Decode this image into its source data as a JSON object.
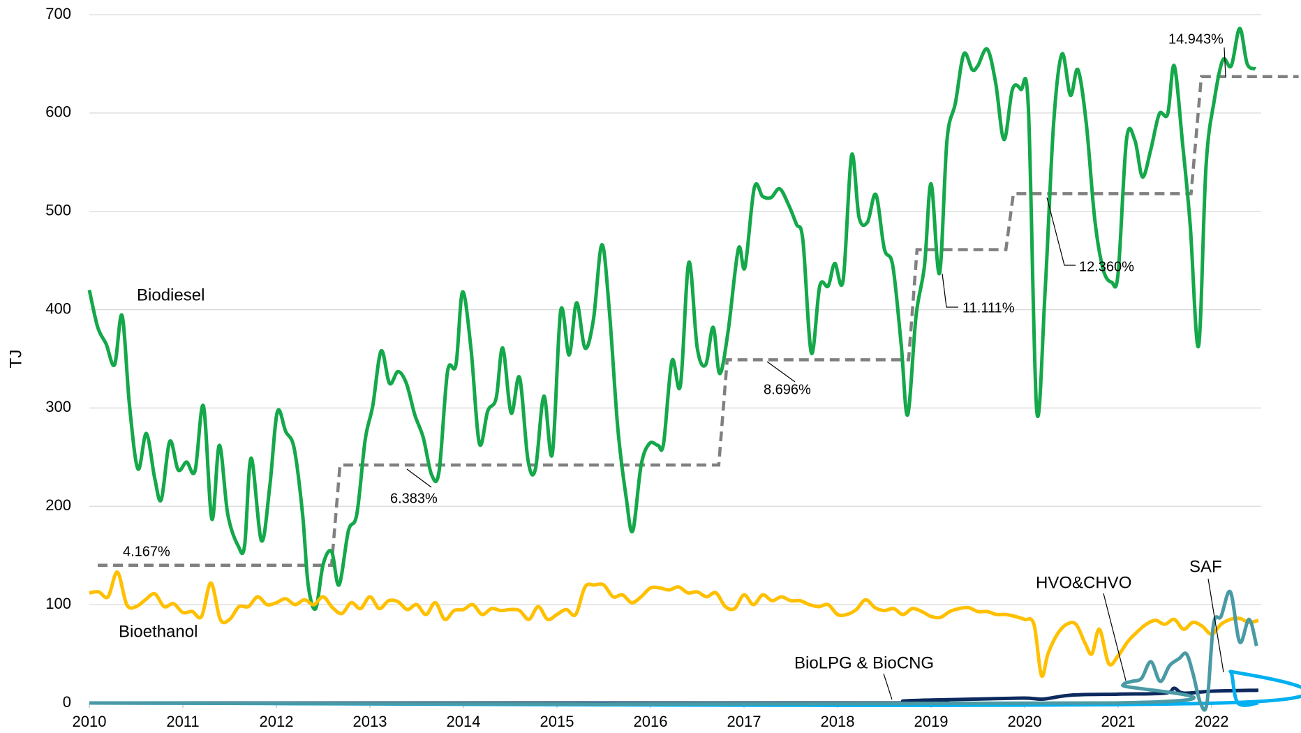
{
  "chart_data": {
    "type": "line",
    "y_label": "TJ",
    "xlim": [
      2010,
      2022.53
    ],
    "ylim": [
      0,
      700
    ],
    "xticks": [
      2010,
      2011,
      2012,
      2013,
      2014,
      2015,
      2016,
      2017,
      2018,
      2019,
      2020,
      2021,
      2022
    ],
    "yticks": [
      0,
      100,
      200,
      300,
      400,
      500,
      600,
      700
    ],
    "grid": true,
    "series": [
      {
        "name": "Biodiesel",
        "color": "#14a84a",
        "x": [
          2010.0,
          2010.09,
          2010.18,
          2010.27,
          2010.35,
          2010.43,
          2010.52,
          2010.61,
          2010.7,
          2010.77,
          2010.86,
          2010.95,
          2011.04,
          2011.13,
          2011.22,
          2011.31,
          2011.39,
          2011.48,
          2011.59,
          2011.66,
          2011.73,
          2011.84,
          2011.93,
          2012.01,
          2012.1,
          2012.19,
          2012.28,
          2012.34,
          2012.42,
          2012.5,
          2012.59,
          2012.67,
          2012.77,
          2012.86,
          2012.95,
          2013.03,
          2013.12,
          2013.21,
          2013.3,
          2013.39,
          2013.48,
          2013.57,
          2013.66,
          2013.74,
          2013.83,
          2013.92,
          2013.99,
          2014.08,
          2014.17,
          2014.26,
          2014.35,
          2014.42,
          2014.51,
          2014.6,
          2014.69,
          2014.77,
          2014.86,
          2014.95,
          2015.04,
          2015.13,
          2015.21,
          2015.3,
          2015.39,
          2015.48,
          2015.56,
          2015.65,
          2015.74,
          2015.81,
          2015.9,
          2015.99,
          2016.08,
          2016.14,
          2016.23,
          2016.32,
          2016.41,
          2016.5,
          2016.59,
          2016.67,
          2016.74,
          2016.83,
          2016.94,
          2017.01,
          2017.11,
          2017.2,
          2017.29,
          2017.38,
          2017.47,
          2017.56,
          2017.63,
          2017.72,
          2017.81,
          2017.9,
          2017.97,
          2018.06,
          2018.15,
          2018.23,
          2018.32,
          2018.41,
          2018.5,
          2018.59,
          2018.68,
          2018.75,
          2018.84,
          2018.93,
          2019.0,
          2019.09,
          2019.17,
          2019.26,
          2019.35,
          2019.44,
          2019.5,
          2019.6,
          2019.69,
          2019.78,
          2019.87,
          2019.96,
          2020.04,
          2020.13,
          2020.22,
          2020.31,
          2020.4,
          2020.49,
          2020.57,
          2020.66,
          2020.75,
          2020.84,
          2020.93,
          2021.0,
          2021.09,
          2021.18,
          2021.26,
          2021.35,
          2021.44,
          2021.53,
          2021.6,
          2021.69,
          2021.77,
          2021.86,
          2021.94,
          2022.03,
          2022.12,
          2022.21,
          2022.3,
          2022.38,
          2022.47
        ],
        "values": [
          420,
          382,
          365,
          344,
          394,
          302,
          238,
          274,
          228,
          207,
          266,
          237,
          245,
          236,
          302,
          187,
          262,
          192,
          160,
          160,
          249,
          165,
          221,
          296,
          276,
          259,
          192,
          120,
          96,
          141,
          154,
          120,
          175,
          192,
          268,
          302,
          358,
          325,
          337,
          325,
          293,
          270,
          232,
          236,
          337,
          344,
          418,
          361,
          264,
          297,
          310,
          361,
          295,
          331,
          247,
          238,
          312,
          253,
          399,
          354,
          407,
          361,
          390,
          466,
          399,
          280,
          209,
          175,
          242,
          264,
          262,
          264,
          348,
          323,
          448,
          361,
          344,
          382,
          335,
          378,
          462,
          443,
          524,
          515,
          514,
          523,
          508,
          487,
          470,
          356,
          424,
          424,
          447,
          430,
          557,
          494,
          489,
          517,
          462,
          445,
          365,
          293,
          394,
          445,
          528,
          437,
          572,
          610,
          660,
          644,
          648,
          665,
          631,
          573,
          624,
          624,
          606,
          297,
          420,
          589,
          660,
          618,
          644,
          589,
          492,
          441,
          428,
          437,
          573,
          572,
          535,
          563,
          599,
          599,
          648,
          568,
          487,
          363,
          546,
          614,
          654,
          648,
          686,
          650,
          645
        ]
      },
      {
        "name": "Bioethanol",
        "color": "#ffc000",
        "x": [
          2010.0,
          2010.1,
          2010.2,
          2010.3,
          2010.4,
          2010.5,
          2010.6,
          2010.7,
          2010.8,
          2010.9,
          2011.0,
          2011.1,
          2011.2,
          2011.3,
          2011.4,
          2011.5,
          2011.6,
          2011.7,
          2011.8,
          2011.9,
          2012.0,
          2012.1,
          2012.2,
          2012.3,
          2012.4,
          2012.5,
          2012.6,
          2012.7,
          2012.8,
          2012.9,
          2013.0,
          2013.1,
          2013.2,
          2013.3,
          2013.4,
          2013.5,
          2013.6,
          2013.7,
          2013.8,
          2013.9,
          2014.0,
          2014.1,
          2014.2,
          2014.3,
          2014.4,
          2014.5,
          2014.6,
          2014.7,
          2014.8,
          2014.9,
          2015.0,
          2015.1,
          2015.2,
          2015.3,
          2015.4,
          2015.5,
          2015.6,
          2015.7,
          2015.8,
          2015.9,
          2016.0,
          2016.1,
          2016.2,
          2016.3,
          2016.4,
          2016.5,
          2016.6,
          2016.7,
          2016.8,
          2016.9,
          2017.0,
          2017.1,
          2017.2,
          2017.3,
          2017.4,
          2017.5,
          2017.6,
          2017.7,
          2017.8,
          2017.9,
          2018.0,
          2018.1,
          2018.2,
          2018.3,
          2018.4,
          2018.5,
          2018.6,
          2018.7,
          2018.8,
          2018.9,
          2019.0,
          2019.1,
          2019.2,
          2019.3,
          2019.4,
          2019.5,
          2019.6,
          2019.7,
          2019.8,
          2019.9,
          2020.0,
          2020.1,
          2020.18,
          2020.25,
          2020.35,
          2020.45,
          2020.55,
          2020.65,
          2020.72,
          2020.8,
          2020.9,
          2021.0,
          2021.1,
          2021.2,
          2021.3,
          2021.4,
          2021.5,
          2021.6,
          2021.7,
          2021.8,
          2021.9,
          2022.0,
          2022.1,
          2022.2,
          2022.3,
          2022.4,
          2022.5
        ],
        "values": [
          112,
          113,
          108,
          133,
          100,
          98,
          105,
          111,
          98,
          101,
          92,
          93,
          88,
          122,
          85,
          85,
          98,
          98,
          108,
          100,
          102,
          106,
          100,
          105,
          100,
          108,
          97,
          91,
          102,
          96,
          108,
          96,
          104,
          103,
          95,
          100,
          90,
          102,
          85,
          94,
          95,
          100,
          90,
          96,
          94,
          95,
          94,
          85,
          98,
          85,
          90,
          95,
          90,
          118,
          120,
          120,
          108,
          110,
          102,
          108,
          117,
          117,
          115,
          118,
          112,
          113,
          108,
          112,
          98,
          96,
          110,
          100,
          110,
          104,
          108,
          104,
          104,
          100,
          98,
          100,
          90,
          90,
          95,
          105,
          97,
          94,
          96,
          90,
          96,
          93,
          88,
          87,
          93,
          96,
          97,
          93,
          93,
          90,
          90,
          88,
          85,
          80,
          28,
          50,
          70,
          80,
          80,
          60,
          50,
          75,
          40,
          48,
          62,
          72,
          80,
          84,
          80,
          85,
          75,
          82,
          78,
          70,
          80,
          85,
          86,
          82,
          84
        ]
      },
      {
        "name": "BioLPG & BioCNG",
        "color": "#0d2a5e",
        "x": [
          2010.0,
          2018.5,
          2018.7,
          2019.0,
          2019.5,
          2020.0,
          2020.2,
          2020.5,
          2021.0,
          2021.5,
          2021.6,
          2021.7,
          2022.0,
          2022.5
        ],
        "values": [
          0,
          0,
          2,
          3,
          4,
          5,
          4,
          8,
          9,
          10,
          15,
          10,
          12,
          13
        ]
      },
      {
        "name": "SAF",
        "color": "#00b0f0",
        "x": [
          2010.0,
          2022.1,
          2022.2,
          2022.28,
          2022.5
        ],
        "values": [
          0,
          0,
          32,
          0,
          0
        ]
      },
      {
        "name": "HVO&CHVO",
        "color": "#4a9aa5",
        "x": [
          2010.0,
          2020.98,
          2021.05,
          2021.15,
          2021.25,
          2021.35,
          2021.45,
          2021.55,
          2021.65,
          2021.73,
          2021.8,
          2021.88,
          2021.95,
          2022.02,
          2022.1,
          2022.2,
          2022.3,
          2022.4,
          2022.48
        ],
        "values": [
          0,
          0,
          18,
          22,
          25,
          42,
          22,
          38,
          45,
          50,
          30,
          0,
          0,
          80,
          88,
          113,
          62,
          85,
          58
        ]
      }
    ],
    "steps": {
      "color": "#808080",
      "dashed": true,
      "x": [
        2010.09,
        2012.59,
        2012.68,
        2016.73,
        2016.82,
        2018.76,
        2018.85,
        2019.8,
        2019.88,
        2021.78,
        2021.89,
        2022.93
      ],
      "values": [
        140,
        140,
        242,
        242,
        349,
        349,
        461,
        461,
        518,
        518,
        637,
        637
      ],
      "labels": [
        "4.167%",
        "6.383%",
        "8.696%",
        "11.111%",
        "12.360%",
        "14.943%"
      ]
    }
  }
}
